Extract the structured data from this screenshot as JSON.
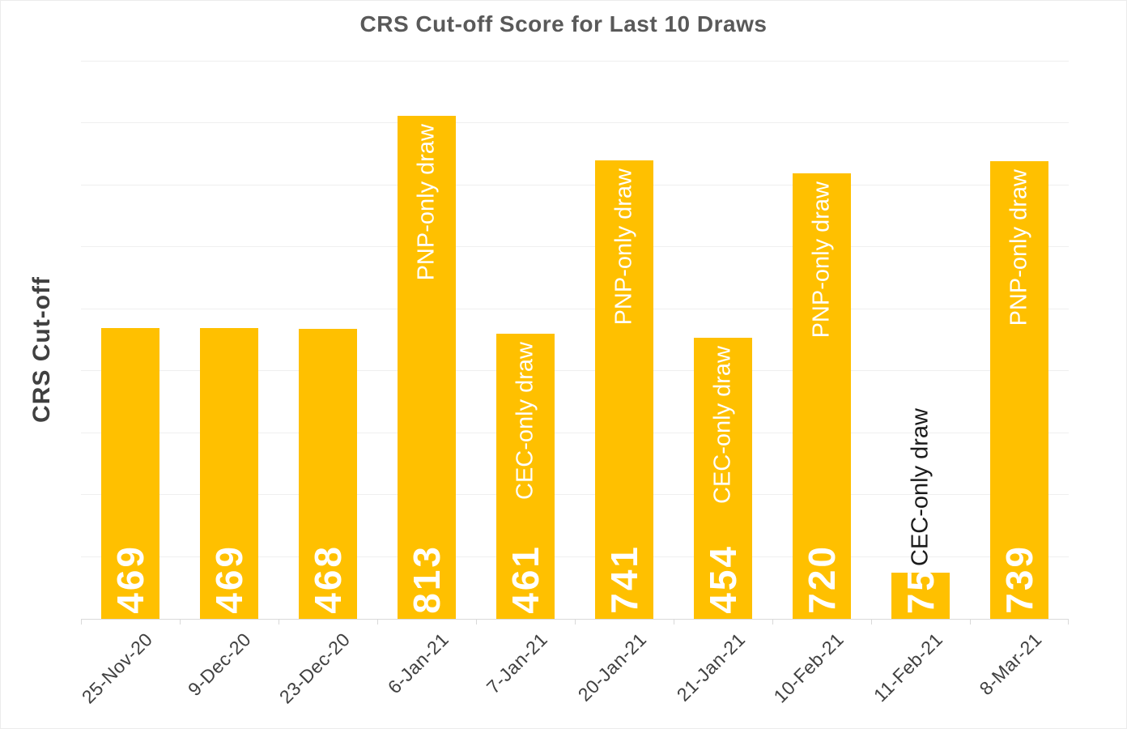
{
  "title": "CRS Cut-off Score for Last 10 Draws",
  "ylabel": "CRS Cut-off",
  "colors": {
    "bar": "#FFC000",
    "title_text": "#595959",
    "axis_text": "#404040",
    "gridline": "#EFEFEF",
    "value_text": "#FFFFFF",
    "note_inside_text": "#FFFFFF",
    "note_above_text": "#1A1A1A"
  },
  "chart_data": {
    "type": "bar",
    "title": "CRS Cut-off Score for Last 10 Draws",
    "xlabel": "",
    "ylabel": "CRS Cut-off",
    "categories": [
      "25-Nov-20",
      "9-Dec-20",
      "23-Dec-20",
      "6-Jan-21",
      "7-Jan-21",
      "20-Jan-21",
      "21-Jan-21",
      "10-Feb-21",
      "11-Feb-21",
      "8-Mar-21"
    ],
    "values": [
      469,
      469,
      468,
      813,
      461,
      741,
      454,
      720,
      75,
      739
    ],
    "annotations": [
      "",
      "",
      "",
      "PNP-only draw",
      "CEC-only draw",
      "PNP-only draw",
      "CEC-only draw",
      "PNP-only draw",
      "CEC-only draw",
      "PNP-only draw"
    ],
    "annotation_placement": [
      "none",
      "none",
      "none",
      "inside",
      "inside",
      "inside",
      "inside",
      "inside",
      "above",
      "inside"
    ],
    "ylim": [
      0,
      900
    ],
    "gridline_step": 100,
    "grid": true,
    "legend_position": "none",
    "y_tick_labels_visible": false,
    "value_labels_position": "inside-base-rotated",
    "x_tick_label_rotation_deg": 45
  }
}
